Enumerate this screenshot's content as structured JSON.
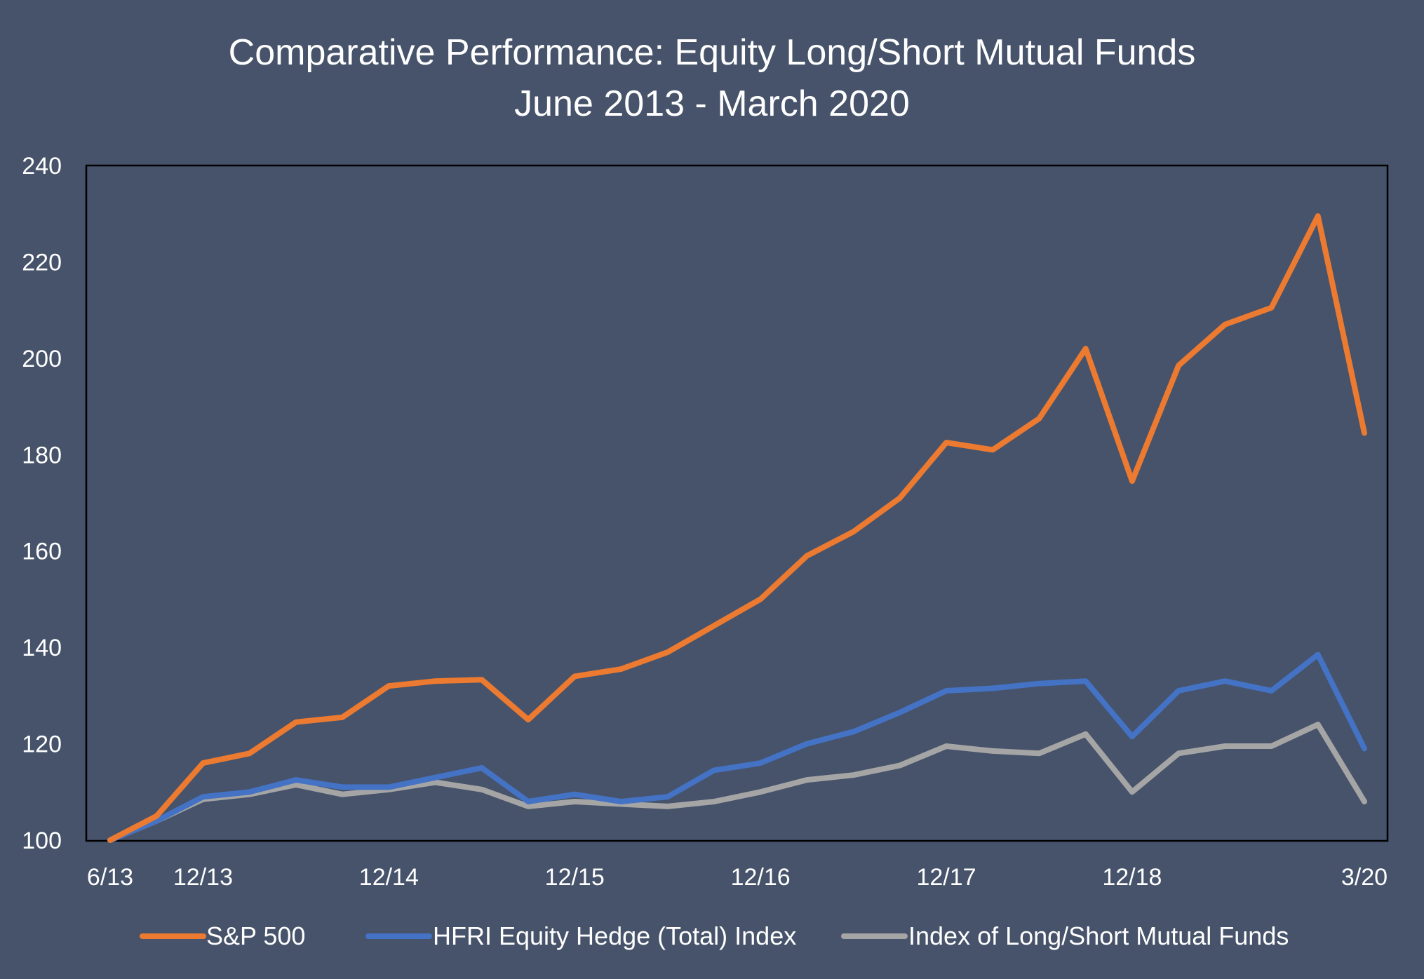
{
  "colors": {
    "background": "#46536a",
    "sp500": "#ec7a30",
    "hfri": "#4472c4",
    "mutual_funds": "#a5a5a5"
  },
  "chart_data": {
    "type": "line",
    "title": "Comparative Performance: Equity Long/Short Mutual Funds",
    "subtitle": "June 2013 - March 2020",
    "xlabel": "",
    "ylabel": "",
    "x_tick_labels": [
      "6/13",
      "12/13",
      "12/14",
      "12/15",
      "12/16",
      "12/17",
      "12/18",
      "3/20"
    ],
    "x_tick_positions": [
      0,
      2,
      6,
      10,
      14,
      18,
      22,
      27
    ],
    "x": [
      "6/13",
      "9/13",
      "12/13",
      "3/14",
      "6/14",
      "9/14",
      "12/14",
      "3/15",
      "6/15",
      "9/15",
      "12/15",
      "3/16",
      "6/16",
      "9/16",
      "12/16",
      "3/17",
      "6/17",
      "9/17",
      "12/17",
      "3/18",
      "6/18",
      "9/18",
      "12/18",
      "3/19",
      "6/19",
      "9/19",
      "12/19",
      "3/20"
    ],
    "ylim": [
      100,
      240
    ],
    "yticks": [
      100,
      120,
      140,
      160,
      180,
      200,
      220,
      240
    ],
    "grid": false,
    "legend_position": "bottom",
    "series": [
      {
        "name": "S&P 500",
        "values": [
          100,
          105,
          116,
          118,
          124.5,
          125.5,
          132,
          133,
          133.3,
          125,
          134,
          135.5,
          139,
          144.5,
          150,
          159,
          164,
          171,
          182.5,
          181,
          187.5,
          202,
          174.5,
          198.5,
          207,
          210.5,
          229.5,
          184.5
        ]
      },
      {
        "name": "HFRI Equity Hedge (Total) Index",
        "values": [
          100,
          104,
          109,
          110,
          112.5,
          111,
          111,
          113,
          115,
          108,
          109.5,
          108,
          109,
          114.5,
          116,
          120,
          122.5,
          126.5,
          131,
          131.5,
          132.5,
          133,
          121.5,
          131,
          133,
          131,
          138.5,
          119
        ]
      },
      {
        "name": "Index of Long/Short Mutual Funds",
        "values": [
          100,
          104,
          108.5,
          109.5,
          111.5,
          109.5,
          110.5,
          112,
          110.5,
          107,
          108,
          107.5,
          107,
          108,
          110,
          112.5,
          113.5,
          115.5,
          119.5,
          118.5,
          118,
          122,
          110,
          118,
          119.5,
          119.5,
          124,
          108
        ]
      }
    ]
  }
}
